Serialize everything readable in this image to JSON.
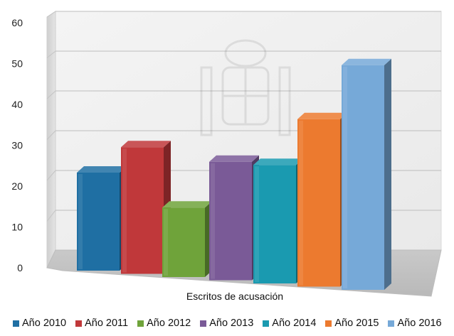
{
  "chart_data": {
    "type": "bar",
    "categories": [
      "Escritos de acusación"
    ],
    "series": [
      {
        "name": "Año 2010",
        "values": [
          24
        ],
        "color": "#1F6FA3"
      },
      {
        "name": "Año 2011",
        "values": [
          31
        ],
        "color": "#C0383A"
      },
      {
        "name": "Año 2012",
        "values": [
          17
        ],
        "color": "#6FA33A"
      },
      {
        "name": "Año 2013",
        "values": [
          29
        ],
        "color": "#7A5A97"
      },
      {
        "name": "Año 2014",
        "values": [
          29
        ],
        "color": "#1A9AB0"
      },
      {
        "name": "Año 2015",
        "values": [
          41
        ],
        "color": "#EC7A2F"
      },
      {
        "name": "Año 2016",
        "values": [
          55
        ],
        "color": "#76A9D8"
      }
    ],
    "yticks": [
      "0",
      "10",
      "20",
      "30",
      "40",
      "50",
      "60"
    ],
    "ylim": [
      0,
      60
    ],
    "xlabel": "Escritos de acusación",
    "grid": true,
    "legend_position": "bottom",
    "style": "3d"
  }
}
